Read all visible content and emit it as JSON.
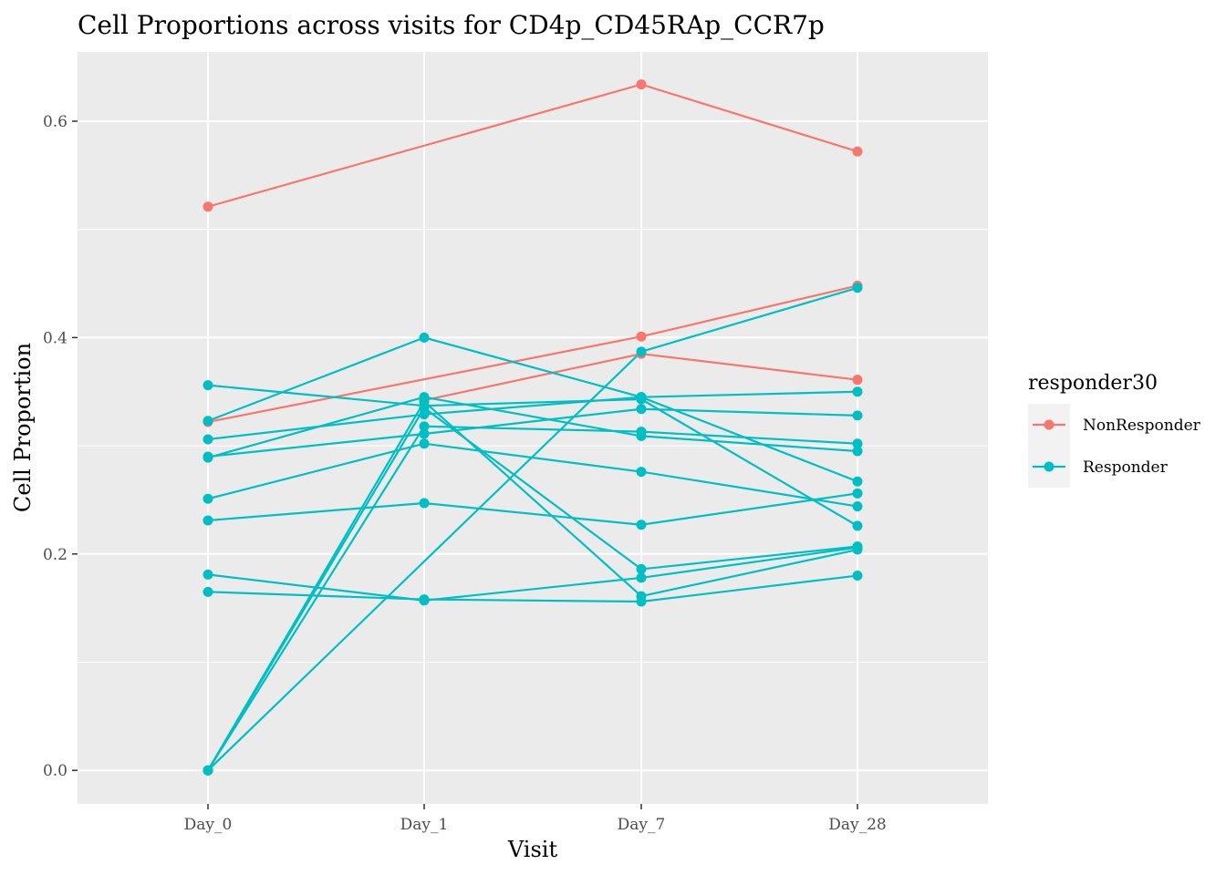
{
  "chart_data": {
    "type": "line",
    "title": "Cell Proportions across visits for CD4p_CD45RAp_CCR7p",
    "xlabel": "Visit",
    "ylabel": "Cell Proportion",
    "categories": [
      "Day_0",
      "Day_1",
      "Day_7",
      "Day_28"
    ],
    "y_ticks": [
      0.0,
      0.2,
      0.4,
      0.6
    ],
    "y_tick_labels": [
      "0.0",
      "0.2",
      "0.4",
      "0.6"
    ],
    "ylim": [
      -0.031,
      0.664
    ],
    "grid": true,
    "legend": {
      "title": "responder30",
      "placement": "right",
      "entries": [
        {
          "label": "NonResponder",
          "color": "#F8766D"
        },
        {
          "label": "Responder",
          "color": "#00BFC4"
        }
      ]
    },
    "series": [
      {
        "group": "NonResponder",
        "values": [
          0.521,
          null,
          0.634,
          0.572
        ]
      },
      {
        "group": "NonResponder",
        "values": [
          0.322,
          null,
          0.401,
          0.448
        ]
      },
      {
        "group": "NonResponder",
        "values": [
          null,
          0.342,
          0.385,
          0.361
        ]
      },
      {
        "group": "Responder",
        "values": [
          0.356,
          0.337,
          0.343,
          0.226
        ]
      },
      {
        "group": "Responder",
        "values": [
          0.323,
          0.4,
          0.345,
          0.267
        ]
      },
      {
        "group": "Responder",
        "values": [
          0.306,
          0.329,
          0.345,
          0.35
        ]
      },
      {
        "group": "Responder",
        "values": [
          0.29,
          0.311,
          0.334,
          0.328
        ]
      },
      {
        "group": "Responder",
        "values": [
          0.289,
          0.345,
          0.309,
          0.295
        ]
      },
      {
        "group": "Responder",
        "values": [
          0.251,
          0.302,
          0.276,
          0.244
        ]
      },
      {
        "group": "Responder",
        "values": [
          0.231,
          0.247,
          0.227,
          0.256
        ]
      },
      {
        "group": "Responder",
        "values": [
          0.181,
          0.157,
          0.178,
          0.206
        ]
      },
      {
        "group": "Responder",
        "values": [
          0.165,
          0.158,
          0.156,
          0.18
        ]
      },
      {
        "group": "Responder",
        "values": [
          0.0,
          0.341,
          0.161,
          0.204
        ]
      },
      {
        "group": "Responder",
        "values": [
          0.0,
          0.335,
          0.186,
          0.207
        ]
      },
      {
        "group": "Responder",
        "values": [
          0.0,
          0.318,
          0.313,
          0.302
        ]
      },
      {
        "group": "Responder",
        "values": [
          0.0,
          null,
          0.387,
          0.446
        ]
      }
    ]
  }
}
